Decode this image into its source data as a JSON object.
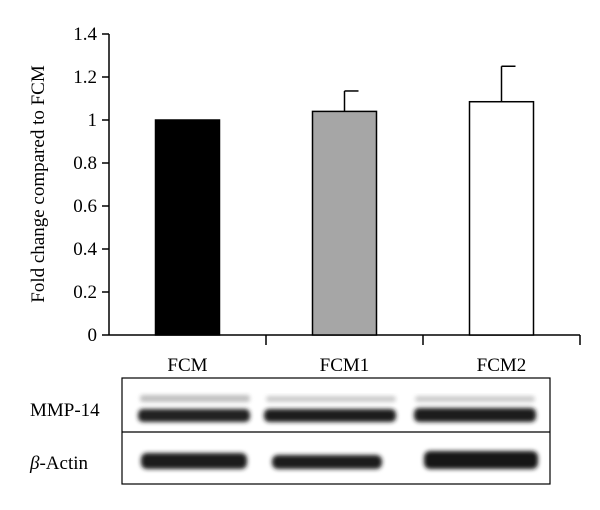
{
  "chart_data": {
    "type": "bar",
    "title": "",
    "xlabel": "",
    "ylabel": "Fold change compared to FCM",
    "ylim": [
      0,
      1.4
    ],
    "yticks": [
      "0",
      "0.2",
      "0.4",
      "0.6",
      "0.8",
      "1",
      "1.2",
      "1.4"
    ],
    "categories": [
      "FCM",
      "FCM1",
      "FCM2"
    ],
    "values": [
      1.0,
      1.04,
      1.085
    ],
    "errors": [
      0.0,
      0.095,
      0.165
    ],
    "bar_colors": [
      "#000000",
      "#a6a6a6",
      "#ffffff"
    ],
    "grid": false
  },
  "blot": {
    "rows": [
      {
        "label_greek": "",
        "label_text": "MMP-14"
      },
      {
        "label_greek": "β",
        "label_text": "-Actin"
      }
    ]
  }
}
